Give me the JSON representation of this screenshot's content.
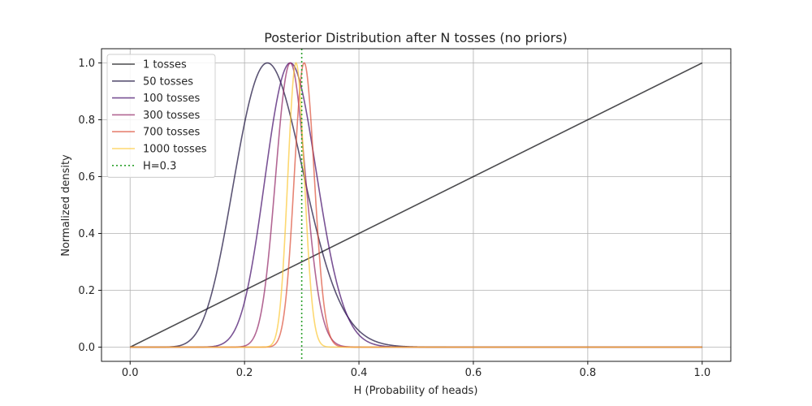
{
  "chart_data": {
    "type": "line",
    "title": "Posterior Distribution after N tosses (no priors)",
    "xlabel": "H (Probability of heads)",
    "ylabel": "Normalized density",
    "xlim": [
      -0.05,
      1.05
    ],
    "ylim": [
      -0.05,
      1.05
    ],
    "xticks": [
      0.0,
      0.2,
      0.4,
      0.6,
      0.8,
      1.0
    ],
    "xtick_labels": [
      "0.0",
      "0.2",
      "0.4",
      "0.6",
      "0.8",
      "1.0"
    ],
    "yticks": [
      0.0,
      0.2,
      0.4,
      0.6,
      0.8,
      1.0
    ],
    "ytick_labels": [
      "0.0",
      "0.2",
      "0.4",
      "0.6",
      "0.8",
      "1.0"
    ],
    "grid": true,
    "legend_position": "top-left",
    "series": [
      {
        "name": "1 tosses",
        "tosses": 1,
        "heads": 1,
        "color": "#000004",
        "opacity": 0.7
      },
      {
        "name": "50 tosses",
        "tosses": 50,
        "heads": 12,
        "color": "#160b39",
        "opacity": 0.7
      },
      {
        "name": "100 tosses",
        "tosses": 100,
        "heads": 28,
        "color": "#420a68",
        "opacity": 0.7
      },
      {
        "name": "300 tosses",
        "tosses": 300,
        "heads": 84,
        "color": "#932667",
        "opacity": 0.7
      },
      {
        "name": "700 tosses",
        "tosses": 700,
        "heads": 213,
        "color": "#dd513a",
        "opacity": 0.7
      },
      {
        "name": "1000 tosses",
        "tosses": 1000,
        "heads": 290,
        "color": "#fcc734",
        "opacity": 0.7
      }
    ],
    "reference_line": {
      "name": "H=0.3",
      "x": 0.3,
      "color": "#2ca02c",
      "style": "dotted"
    }
  }
}
